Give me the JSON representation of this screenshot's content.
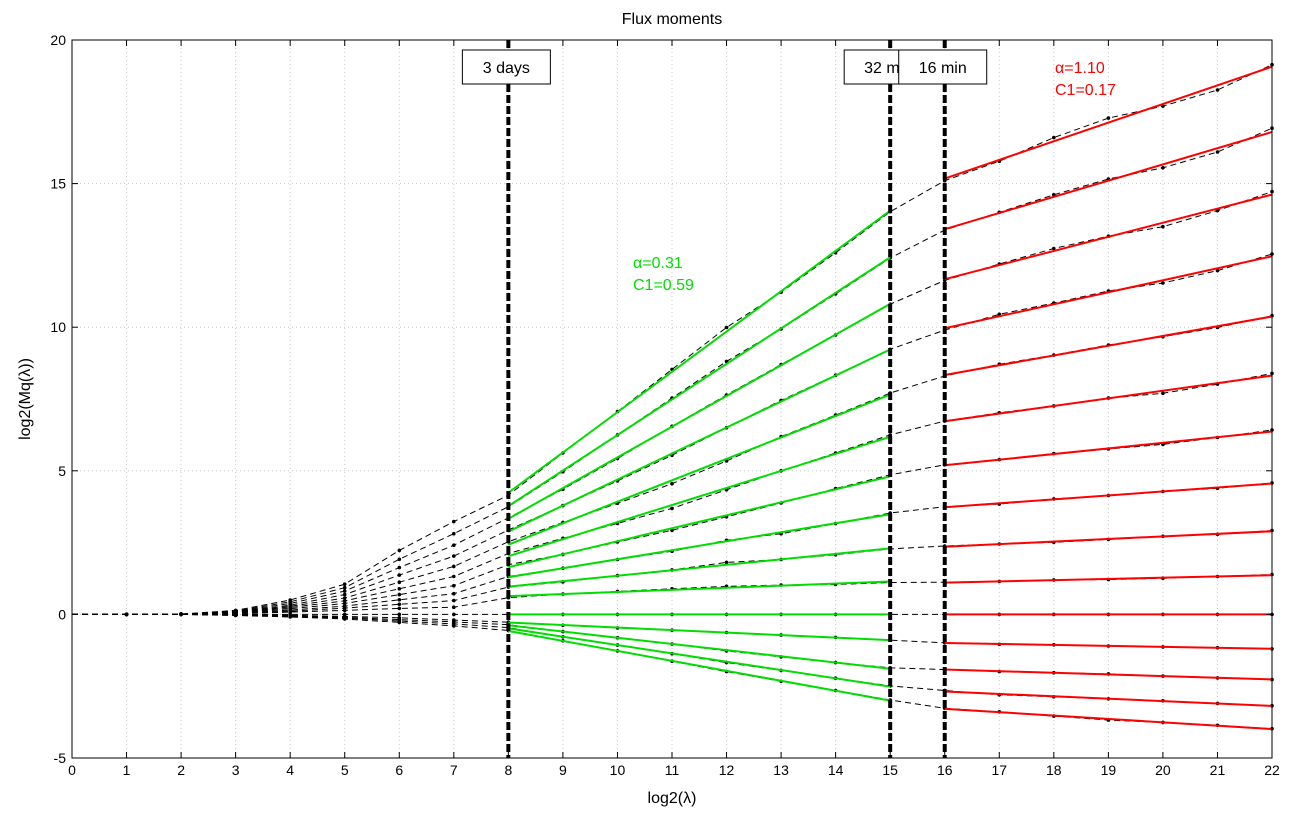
{
  "chart_data": {
    "type": "line",
    "title": "Flux moments",
    "xlabel": "log2(λ)",
    "ylabel": "log2(Mq(λ))",
    "xlim": [
      0,
      22
    ],
    "ylim": [
      -5,
      20
    ],
    "x_ticks": [
      0,
      1,
      2,
      3,
      4,
      5,
      6,
      7,
      8,
      9,
      10,
      11,
      12,
      13,
      14,
      15,
      16,
      17,
      18,
      19,
      20,
      21,
      22
    ],
    "y_ticks": [
      -5,
      0,
      5,
      10,
      15,
      20
    ],
    "grid": true,
    "colors": {
      "data": "#000000",
      "fit_low": "#00dd00",
      "fit_high": "#ff0000"
    },
    "x": [
      1,
      2,
      3,
      4,
      5,
      6,
      7,
      8,
      9,
      10,
      11,
      12,
      13,
      14,
      15,
      16,
      17,
      18,
      19,
      20,
      21,
      22
    ],
    "series": [
      {
        "values": [
          0,
          0.01,
          0.14,
          0.5,
          1.05,
          2.23,
          3.23,
          4.15,
          5.62,
          7.06,
          8.53,
          9.99,
          11.22,
          12.59,
          14.02,
          15.1,
          15.78,
          16.6,
          17.28,
          17.7,
          18.26,
          19.14
        ]
      },
      {
        "values": [
          0,
          0.01,
          0.12,
          0.44,
          0.93,
          1.92,
          2.81,
          3.75,
          4.97,
          6.25,
          7.53,
          8.81,
          9.94,
          11.16,
          12.41,
          13.38,
          14.0,
          14.61,
          15.16,
          15.55,
          16.1,
          16.93
        ]
      },
      {
        "values": [
          0,
          0.01,
          0.1,
          0.38,
          0.81,
          1.63,
          2.41,
          3.36,
          4.36,
          5.43,
          6.55,
          7.64,
          8.7,
          9.73,
          10.8,
          11.63,
          12.2,
          12.74,
          13.17,
          13.5,
          14.06,
          14.72
        ]
      },
      {
        "values": [
          0,
          0.01,
          0.09,
          0.32,
          0.69,
          1.37,
          2.03,
          2.94,
          3.79,
          4.65,
          5.54,
          6.5,
          7.45,
          8.33,
          9.23,
          9.9,
          10.45,
          10.84,
          11.26,
          11.54,
          11.97,
          12.55
        ]
      },
      {
        "values": [
          0,
          0.01,
          0.08,
          0.28,
          0.57,
          1.12,
          1.67,
          2.53,
          3.2,
          3.87,
          4.55,
          5.34,
          6.19,
          6.94,
          7.71,
          8.3,
          8.71,
          9.03,
          9.38,
          9.67,
          9.99,
          10.4
        ]
      },
      {
        "values": [
          0,
          0.01,
          0.07,
          0.24,
          0.47,
          0.89,
          1.32,
          2.12,
          2.65,
          3.17,
          3.69,
          4.34,
          5.0,
          5.62,
          6.25,
          6.73,
          7.02,
          7.26,
          7.53,
          7.7,
          8.02,
          8.39
        ]
      },
      {
        "values": [
          0,
          0.01,
          0.06,
          0.2,
          0.38,
          0.69,
          1.0,
          1.73,
          2.09,
          2.52,
          2.93,
          3.4,
          3.88,
          4.38,
          4.86,
          5.21,
          5.39,
          5.6,
          5.76,
          5.92,
          6.16,
          6.42
        ]
      },
      {
        "values": [
          0,
          0.01,
          0.05,
          0.15,
          0.29,
          0.51,
          0.72,
          1.32,
          1.61,
          1.91,
          2.2,
          2.58,
          2.81,
          3.16,
          3.53,
          3.75,
          3.84,
          4.02,
          4.14,
          4.28,
          4.39,
          4.58
        ]
      },
      {
        "values": [
          0,
          0.01,
          0.04,
          0.11,
          0.22,
          0.35,
          0.48,
          0.95,
          1.13,
          1.35,
          1.55,
          1.81,
          1.91,
          2.08,
          2.28,
          2.38,
          2.45,
          2.51,
          2.61,
          2.72,
          2.79,
          2.92
        ]
      },
      {
        "values": [
          0,
          0.01,
          0.02,
          0.08,
          0.14,
          0.21,
          0.25,
          0.58,
          0.71,
          0.8,
          0.89,
          0.98,
          1.02,
          1.04,
          1.11,
          1.12,
          1.15,
          1.2,
          1.21,
          1.26,
          1.32,
          1.39
        ]
      },
      {
        "values": [
          0,
          0,
          0,
          0,
          0,
          0,
          0,
          0,
          0,
          0,
          0,
          0,
          0,
          0,
          0,
          0,
          0,
          0,
          0,
          0,
          0,
          0
        ]
      },
      {
        "values": [
          0,
          0,
          -0.01,
          -0.03,
          -0.07,
          -0.12,
          -0.2,
          -0.27,
          -0.38,
          -0.47,
          -0.55,
          -0.63,
          -0.72,
          -0.8,
          -0.9,
          -0.99,
          -1.04,
          -1.06,
          -1.1,
          -1.13,
          -1.16,
          -1.2
        ]
      },
      {
        "values": [
          0,
          0,
          -0.02,
          -0.05,
          -0.1,
          -0.18,
          -0.26,
          -0.36,
          -0.6,
          -0.81,
          -1.03,
          -1.27,
          -1.48,
          -1.68,
          -1.86,
          -1.92,
          -1.99,
          -2.03,
          -2.07,
          -2.15,
          -2.21,
          -2.27
        ]
      },
      {
        "values": [
          0,
          0,
          -0.03,
          -0.07,
          -0.13,
          -0.23,
          -0.33,
          -0.46,
          -0.78,
          -1.07,
          -1.37,
          -1.68,
          -1.95,
          -2.22,
          -2.49,
          -2.65,
          -2.8,
          -2.87,
          -2.94,
          -3.01,
          -3.1,
          -3.18
        ]
      },
      {
        "values": [
          0,
          0,
          -0.04,
          -0.09,
          -0.16,
          -0.28,
          -0.4,
          -0.56,
          -0.92,
          -1.27,
          -1.63,
          -1.99,
          -2.33,
          -2.65,
          -2.98,
          -3.27,
          -3.39,
          -3.54,
          -3.68,
          -3.76,
          -3.86,
          -3.98
        ]
      }
    ],
    "markers": [
      {
        "x": 8,
        "label": "3 days"
      },
      {
        "x": 15,
        "label": "32 min"
      },
      {
        "x": 16,
        "label": "16 min"
      }
    ],
    "fits": [
      {
        "range": [
          8,
          15
        ],
        "color": "#00dd00",
        "alpha": "α=0.31",
        "c1": "C1=0.59",
        "label_at": [
          10.5,
          11.7
        ]
      },
      {
        "range": [
          16,
          22
        ],
        "color": "#ff0000",
        "alpha": "α=1.10",
        "c1": "C1=0.17",
        "label_at": [
          17.9,
          19.1
        ]
      }
    ]
  }
}
